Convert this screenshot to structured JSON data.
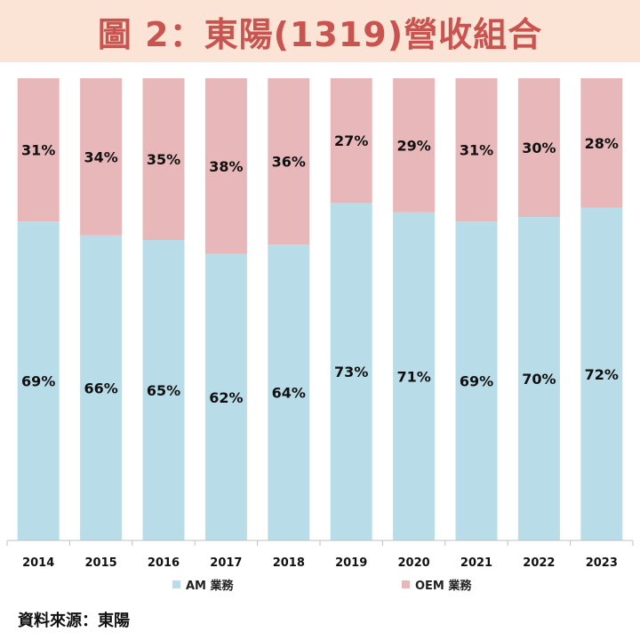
{
  "title": "圖 2：東陽(1319)營收組合",
  "source": "資料來源：東陽",
  "colors": {
    "am": "#b8dde9",
    "oem": "#e8b7b9",
    "title_bg": "#fbe3d6",
    "title_text": "#c9534f"
  },
  "chart_data": {
    "type": "bar",
    "stacked": true,
    "categories": [
      "2014",
      "2015",
      "2016",
      "2017",
      "2018",
      "2019",
      "2020",
      "2021",
      "2022",
      "2023"
    ],
    "series": [
      {
        "name": "AM 業務",
        "values": [
          69,
          66,
          65,
          62,
          64,
          73,
          71,
          69,
          70,
          72
        ],
        "labels": [
          "69%",
          "66%",
          "65%",
          "62%",
          "64%",
          "73%",
          "71%",
          "69%",
          "70%",
          "72%"
        ]
      },
      {
        "name": "OEM 業務",
        "values": [
          31,
          34,
          35,
          38,
          36,
          27,
          29,
          31,
          30,
          28
        ],
        "labels": [
          "31%",
          "34%",
          "35%",
          "38%",
          "36%",
          "27%",
          "29%",
          "31%",
          "30%",
          "28%"
        ]
      }
    ],
    "ylim": [
      0,
      100
    ],
    "legend": "bottom",
    "grid": false
  }
}
